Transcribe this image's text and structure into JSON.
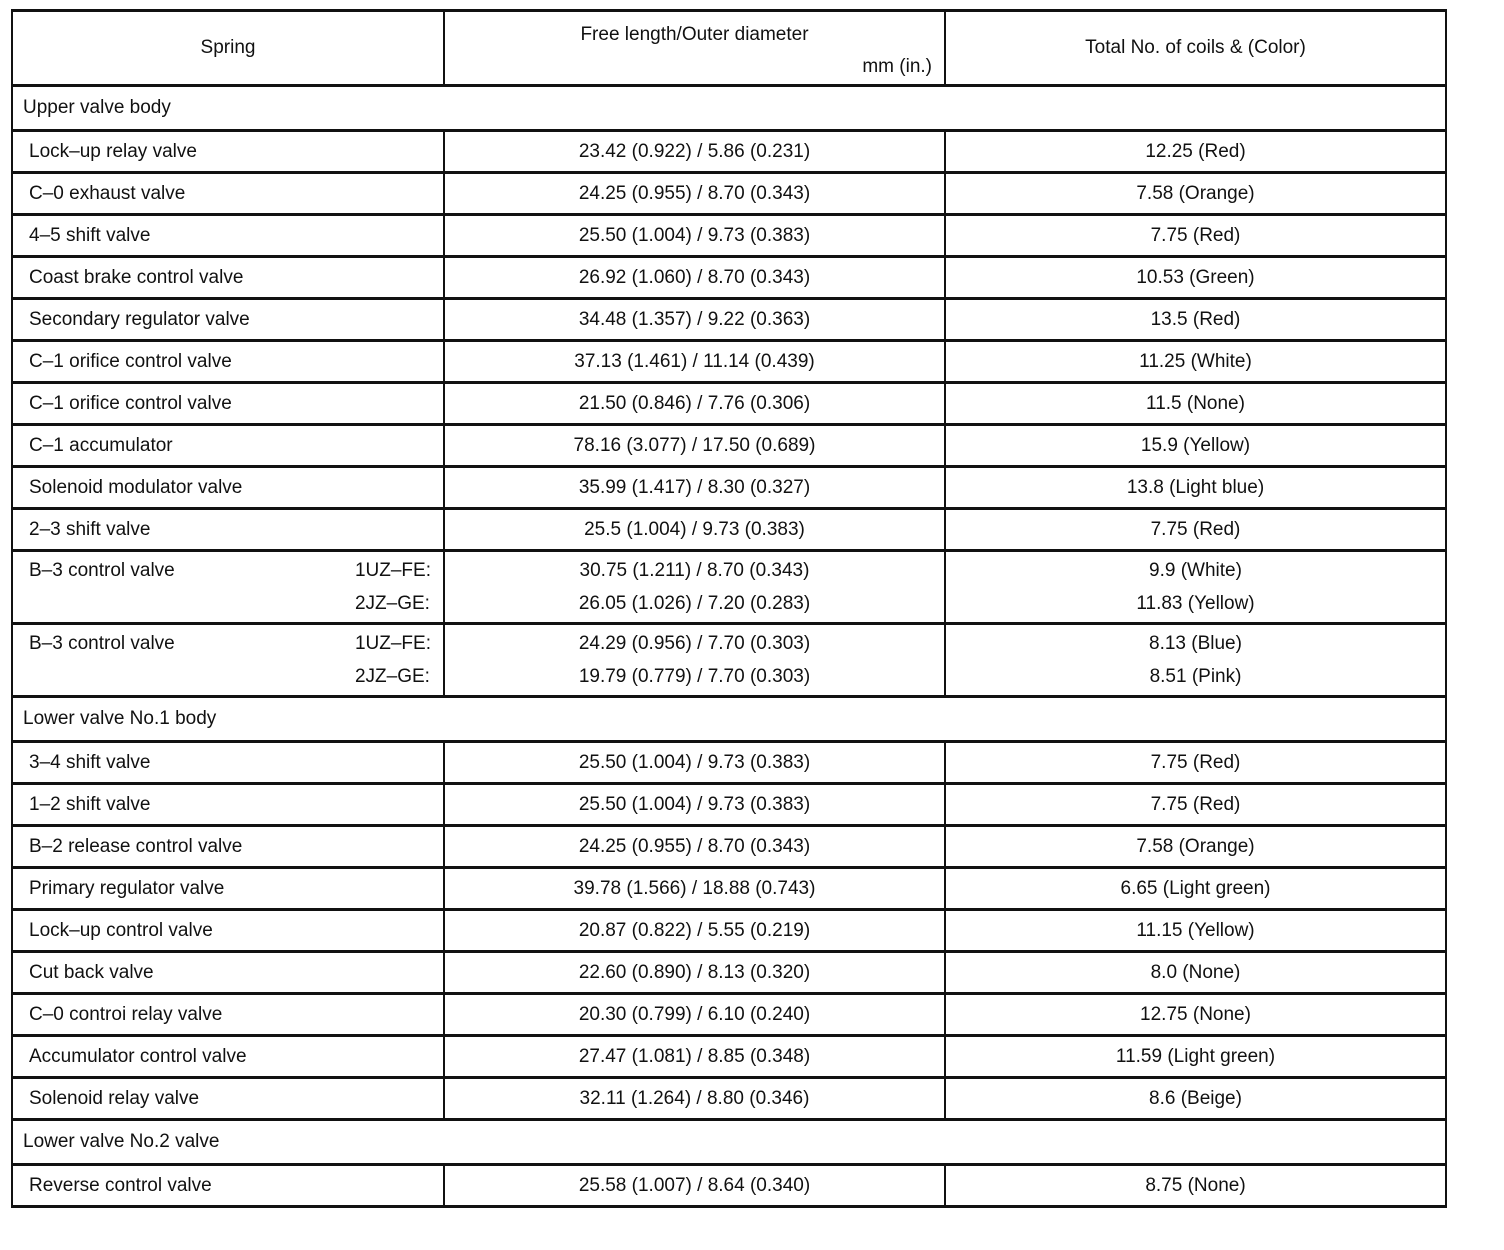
{
  "header": {
    "spring": "Spring",
    "dimension": "Free length/Outer diameter",
    "unit": "mm (in.)",
    "coils": "Total No. of coils & (Color)"
  },
  "sections": [
    {
      "title": "Upper valve body",
      "rows": [
        {
          "spring": "Lock–up relay valve",
          "value": "23.42 (0.922) / 5.86 (0.231)",
          "coils": "12.25 (Red)"
        },
        {
          "spring": "C–0 exhaust valve",
          "value": "24.25 (0.955) / 8.70 (0.343)",
          "coils": "7.58 (Orange)"
        },
        {
          "spring": "4–5 shift valve",
          "value": "25.50 (1.004) / 9.73 (0.383)",
          "coils": "7.75 (Red)"
        },
        {
          "spring": "Coast brake control valve",
          "value": "26.92 (1.060) / 8.70 (0.343)",
          "coils": "10.53 (Green)"
        },
        {
          "spring": "Secondary regulator valve",
          "value": "34.48 (1.357) / 9.22 (0.363)",
          "coils": "13.5 (Red)"
        },
        {
          "spring": "C–1 orifice control valve",
          "value": "37.13 (1.461) / 11.14 (0.439)",
          "coils": "11.25 (White)"
        },
        {
          "spring": "C–1 orifice control valve",
          "value": "21.50 (0.846) / 7.76 (0.306)",
          "coils": "11.5 (None)"
        },
        {
          "spring": "C–1 accumulator",
          "value": "78.16 (3.077) / 17.50 (0.689)",
          "coils": "15.9 (Yellow)"
        },
        {
          "spring": "Solenoid modulator valve",
          "value": "35.99 (1.417) / 8.30 (0.327)",
          "coils": "13.8 (Light blue)"
        },
        {
          "spring": "2–3 shift valve",
          "value": "25.5 (1.004) / 9.73 (0.383)",
          "coils": "7.75 (Red)"
        },
        {
          "spring": "B–3 control valve",
          "variants": [
            {
              "engine": "1UZ–FE:",
              "value": "30.75 (1.211) / 8.70 (0.343)",
              "coils": "9.9 (White)"
            },
            {
              "engine": "2JZ–GE:",
              "value": "26.05 (1.026) / 7.20 (0.283)",
              "coils": "11.83 (Yellow)"
            }
          ]
        },
        {
          "spring": "B–3 control valve",
          "variants": [
            {
              "engine": "1UZ–FE:",
              "value": "24.29 (0.956) / 7.70 (0.303)",
              "coils": "8.13 (Blue)"
            },
            {
              "engine": "2JZ–GE:",
              "value": "19.79 (0.779) / 7.70 (0.303)",
              "coils": "8.51 (Pink)"
            }
          ]
        }
      ]
    },
    {
      "title": "Lower valve No.1 body",
      "rows": [
        {
          "spring": "3–4 shift valve",
          "value": "25.50 (1.004) / 9.73 (0.383)",
          "coils": "7.75 (Red)"
        },
        {
          "spring": "1–2 shift valve",
          "value": "25.50 (1.004) / 9.73 (0.383)",
          "coils": "7.75 (Red)"
        },
        {
          "spring": "B–2 release control valve",
          "value": "24.25 (0.955) / 8.70 (0.343)",
          "coils": "7.58 (Orange)"
        },
        {
          "spring": "Primary regulator valve",
          "value": "39.78 (1.566) / 18.88 (0.743)",
          "coils": "6.65 (Light green)"
        },
        {
          "spring": "Lock–up control valve",
          "value": "20.87 (0.822) / 5.55 (0.219)",
          "coils": "11.15 (Yellow)"
        },
        {
          "spring": "Cut back valve",
          "value": "22.60 (0.890) / 8.13 (0.320)",
          "coils": "8.0 (None)"
        },
        {
          "spring": "C–0 controi relay valve",
          "value": "20.30 (0.799) / 6.10 (0.240)",
          "coils": "12.75 (None)"
        },
        {
          "spring": "Accumulator control valve",
          "value": "27.47 (1.081) / 8.85 (0.348)",
          "coils": "11.59 (Light green)"
        },
        {
          "spring": "Solenoid relay valve",
          "value": "32.11 (1.264) / 8.80 (0.346)",
          "coils": "8.6 (Beige)"
        }
      ]
    },
    {
      "title": "Lower valve No.2 valve",
      "rows": [
        {
          "spring": "Reverse control valve",
          "value": "25.58 (1.007) / 8.64 (0.340)",
          "coils": "8.75 (None)"
        }
      ]
    }
  ]
}
